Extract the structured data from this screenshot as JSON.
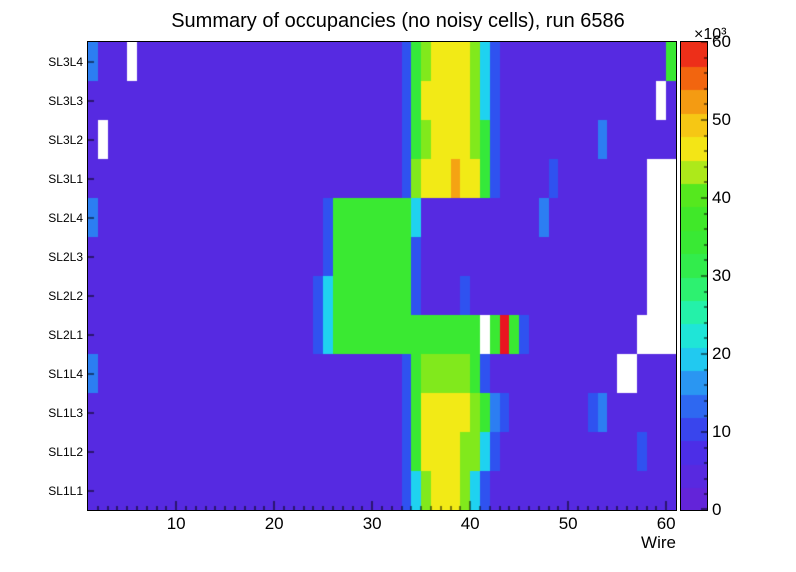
{
  "chart_data": {
    "type": "heatmap",
    "title": "Summary of occupancies (no noisy cells), run 6586",
    "xlabel": "Wire",
    "x_range": [
      1,
      61
    ],
    "x_ticks": [
      10,
      20,
      30,
      40,
      50,
      60
    ],
    "z_ticks": [
      0,
      10,
      20,
      30,
      40,
      50,
      60
    ],
    "z_exponent": "×10³",
    "zlim": [
      0,
      60
    ],
    "z_units": "counts × 10^3",
    "null_color": "#ffffff",
    "background_value": 5,
    "legend_position": "right",
    "grid_on": false,
    "colormap": [
      [
        0,
        "#6922d6"
      ],
      [
        8,
        "#4a2fe8"
      ],
      [
        12,
        "#2f52f0"
      ],
      [
        16,
        "#2b8df2"
      ],
      [
        20,
        "#1fd2f0"
      ],
      [
        24,
        "#1ff0c8"
      ],
      [
        28,
        "#2cf276"
      ],
      [
        33,
        "#35e93a"
      ],
      [
        40,
        "#46e81f"
      ],
      [
        43,
        "#9fe91b"
      ],
      [
        46,
        "#f2ea16"
      ],
      [
        50,
        "#f6c214"
      ],
      [
        53,
        "#f49312"
      ],
      [
        56,
        "#f25c0e"
      ],
      [
        60,
        "#ea1420"
      ]
    ],
    "row_labels": [
      "SL3L4",
      "SL3L3",
      "SL3L2",
      "SL3L1",
      "SL2L4",
      "SL2L3",
      "SL2L2",
      "SL2L1",
      "SL1L4",
      "SL1L3",
      "SL1L2",
      "SL1L1"
    ],
    "grid": [
      [
        15,
        5,
        5,
        5,
        null,
        5,
        5,
        5,
        5,
        5,
        5,
        5,
        5,
        5,
        5,
        5,
        5,
        5,
        5,
        5,
        5,
        5,
        5,
        5,
        5,
        5,
        5,
        5,
        5,
        5,
        5,
        5,
        12,
        33,
        42,
        46,
        46,
        46,
        46,
        42,
        20,
        12,
        5,
        5,
        5,
        5,
        5,
        5,
        5,
        5,
        5,
        5,
        5,
        5,
        5,
        5,
        5,
        5,
        5,
        35
      ],
      [
        5,
        5,
        5,
        5,
        5,
        5,
        5,
        5,
        5,
        5,
        5,
        5,
        5,
        5,
        5,
        5,
        5,
        5,
        5,
        5,
        5,
        5,
        5,
        5,
        5,
        5,
        5,
        5,
        5,
        5,
        5,
        5,
        12,
        33,
        46,
        46,
        46,
        46,
        46,
        42,
        20,
        12,
        5,
        5,
        5,
        5,
        5,
        5,
        5,
        5,
        5,
        5,
        5,
        5,
        5,
        5,
        5,
        5,
        null,
        5
      ],
      [
        5,
        null,
        5,
        5,
        5,
        5,
        5,
        5,
        5,
        5,
        5,
        5,
        5,
        5,
        5,
        5,
        5,
        5,
        5,
        5,
        5,
        5,
        5,
        5,
        5,
        5,
        5,
        5,
        5,
        5,
        5,
        5,
        12,
        33,
        42,
        46,
        46,
        46,
        46,
        42,
        33,
        12,
        5,
        5,
        5,
        5,
        5,
        5,
        5,
        5,
        5,
        5,
        15,
        5,
        5,
        5,
        5,
        5,
        5,
        5
      ],
      [
        5,
        5,
        5,
        5,
        5,
        5,
        5,
        5,
        5,
        5,
        5,
        5,
        5,
        5,
        5,
        5,
        5,
        5,
        5,
        5,
        5,
        5,
        5,
        5,
        5,
        5,
        5,
        5,
        5,
        5,
        5,
        5,
        12,
        42,
        46,
        46,
        46,
        52,
        46,
        46,
        33,
        12,
        5,
        5,
        5,
        5,
        5,
        12,
        5,
        5,
        5,
        5,
        5,
        5,
        5,
        5,
        5,
        null,
        null,
        null
      ],
      [
        15,
        5,
        5,
        5,
        5,
        5,
        5,
        5,
        5,
        5,
        5,
        5,
        5,
        5,
        5,
        5,
        5,
        5,
        5,
        5,
        5,
        5,
        5,
        5,
        12,
        35,
        35,
        35,
        35,
        35,
        35,
        35,
        35,
        20,
        5,
        5,
        5,
        5,
        5,
        5,
        5,
        5,
        5,
        5,
        5,
        5,
        15,
        5,
        5,
        5,
        5,
        5,
        5,
        5,
        5,
        5,
        5,
        null,
        null,
        null
      ],
      [
        5,
        5,
        5,
        5,
        5,
        5,
        5,
        5,
        5,
        5,
        5,
        5,
        5,
        5,
        5,
        5,
        5,
        5,
        5,
        5,
        5,
        5,
        5,
        5,
        12,
        35,
        35,
        35,
        35,
        35,
        35,
        35,
        35,
        12,
        5,
        5,
        5,
        5,
        5,
        5,
        5,
        5,
        5,
        5,
        5,
        5,
        5,
        5,
        5,
        5,
        5,
        5,
        5,
        5,
        5,
        5,
        5,
        null,
        null,
        null
      ],
      [
        5,
        5,
        5,
        5,
        5,
        5,
        5,
        5,
        5,
        5,
        5,
        5,
        5,
        5,
        5,
        5,
        5,
        5,
        5,
        5,
        5,
        5,
        5,
        12,
        20,
        35,
        35,
        35,
        35,
        35,
        35,
        35,
        35,
        12,
        5,
        5,
        5,
        5,
        12,
        5,
        5,
        5,
        5,
        5,
        5,
        5,
        5,
        5,
        5,
        5,
        5,
        5,
        5,
        5,
        5,
        5,
        5,
        null,
        null,
        null
      ],
      [
        5,
        5,
        5,
        5,
        5,
        5,
        5,
        5,
        5,
        5,
        5,
        5,
        5,
        5,
        5,
        5,
        5,
        5,
        5,
        5,
        5,
        5,
        5,
        12,
        20,
        35,
        35,
        35,
        35,
        35,
        35,
        35,
        35,
        35,
        35,
        35,
        35,
        35,
        35,
        35,
        null,
        35,
        60,
        35,
        12,
        5,
        5,
        5,
        5,
        5,
        5,
        5,
        5,
        5,
        5,
        5,
        null,
        null,
        null,
        null
      ],
      [
        15,
        5,
        5,
        5,
        5,
        5,
        5,
        5,
        5,
        5,
        5,
        5,
        5,
        5,
        5,
        5,
        5,
        5,
        5,
        5,
        5,
        5,
        5,
        5,
        5,
        5,
        5,
        5,
        5,
        5,
        5,
        5,
        12,
        35,
        42,
        42,
        42,
        42,
        42,
        35,
        12,
        5,
        5,
        5,
        5,
        5,
        5,
        5,
        5,
        5,
        5,
        5,
        5,
        5,
        null,
        null,
        5,
        5,
        5,
        5
      ],
      [
        5,
        5,
        5,
        5,
        5,
        5,
        5,
        5,
        5,
        5,
        5,
        5,
        5,
        5,
        5,
        5,
        5,
        5,
        5,
        5,
        5,
        5,
        5,
        5,
        5,
        5,
        5,
        5,
        5,
        5,
        5,
        5,
        12,
        35,
        46,
        46,
        46,
        46,
        46,
        42,
        35,
        15,
        12,
        5,
        5,
        5,
        5,
        5,
        5,
        5,
        5,
        12,
        15,
        5,
        5,
        5,
        5,
        5,
        5,
        5
      ],
      [
        5,
        5,
        5,
        5,
        5,
        5,
        5,
        5,
        5,
        5,
        5,
        5,
        5,
        5,
        5,
        5,
        5,
        5,
        5,
        5,
        5,
        5,
        5,
        5,
        5,
        5,
        5,
        5,
        5,
        5,
        5,
        5,
        12,
        35,
        46,
        46,
        46,
        46,
        42,
        42,
        20,
        12,
        5,
        5,
        5,
        5,
        5,
        5,
        5,
        5,
        5,
        5,
        5,
        5,
        5,
        5,
        12,
        5,
        5,
        5
      ],
      [
        5,
        5,
        5,
        5,
        5,
        5,
        5,
        5,
        5,
        5,
        5,
        5,
        5,
        5,
        5,
        5,
        5,
        5,
        5,
        5,
        5,
        5,
        5,
        5,
        5,
        5,
        5,
        5,
        5,
        5,
        5,
        5,
        12,
        20,
        42,
        46,
        46,
        46,
        42,
        20,
        12,
        5,
        5,
        5,
        5,
        5,
        5,
        5,
        5,
        5,
        5,
        5,
        5,
        5,
        5,
        5,
        5,
        5,
        5,
        5
      ]
    ]
  }
}
